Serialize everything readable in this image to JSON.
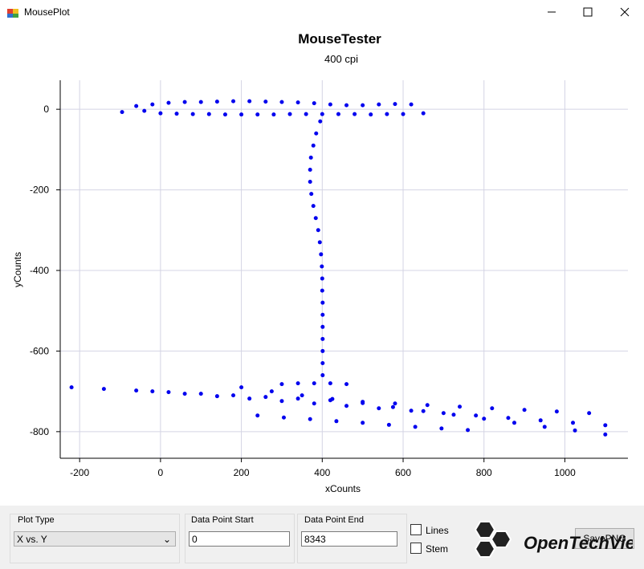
{
  "window": {
    "title": "MousePlot"
  },
  "chart_data": {
    "type": "scatter",
    "title": "MouseTester",
    "subtitle": "400 cpi",
    "x_label": "xCounts",
    "y_label": "yCounts",
    "color": "#0000ee",
    "grid": true,
    "xlim": [
      -248,
      1156
    ],
    "ylim": [
      -866,
      72
    ],
    "xticks": [
      -200,
      0,
      200,
      400,
      600,
      800,
      1000
    ],
    "yticks": [
      0,
      -200,
      -400,
      -600,
      -800
    ],
    "x": [
      -60,
      -20,
      20,
      60,
      100,
      140,
      180,
      220,
      260,
      300,
      340,
      380,
      420,
      460,
      500,
      540,
      580,
      620,
      -95,
      -40,
      0,
      40,
      80,
      120,
      160,
      200,
      240,
      280,
      320,
      360,
      400,
      440,
      480,
      520,
      560,
      600,
      650,
      395,
      385,
      378,
      372,
      370,
      370,
      373,
      378,
      384,
      390,
      394,
      397,
      399,
      400,
      400,
      401,
      401,
      401,
      401,
      401,
      401,
      401,
      -220,
      -140,
      -60,
      20,
      100,
      180,
      260,
      340,
      420,
      500,
      580,
      660,
      740,
      820,
      900,
      980,
      1060,
      -20,
      60,
      140,
      220,
      300,
      380,
      460,
      540,
      620,
      700,
      780,
      860,
      940,
      1020,
      1100,
      200,
      275,
      350,
      425,
      500,
      575,
      650,
      725,
      800,
      875,
      950,
      1025,
      1100,
      240,
      305,
      370,
      435,
      500,
      565,
      630,
      695,
      760,
      300,
      340,
      380,
      420,
      460
    ],
    "y": [
      8,
      12,
      16,
      18,
      18,
      19,
      20,
      20,
      19,
      18,
      17,
      15,
      12,
      10,
      10,
      12,
      13,
      12,
      -7,
      -4,
      -10,
      -11,
      -12,
      -12,
      -13,
      -13,
      -13,
      -13,
      -12,
      -12,
      -12,
      -12,
      -12,
      -13,
      -12,
      -12,
      -10,
      -30,
      -60,
      -90,
      -120,
      -150,
      -180,
      -210,
      -240,
      -270,
      -300,
      -330,
      -360,
      -390,
      -420,
      -450,
      -480,
      -510,
      -540,
      -570,
      -600,
      -630,
      -660,
      -690,
      -694,
      -698,
      -702,
      -706,
      -710,
      -714,
      -718,
      -722,
      -726,
      -730,
      -734,
      -738,
      -742,
      -746,
      -750,
      -754,
      -700,
      -706,
      -712,
      -718,
      -724,
      -730,
      -736,
      -742,
      -748,
      -754,
      -760,
      -766,
      -772,
      -778,
      -784,
      -690,
      -700,
      -710,
      -719,
      -729,
      -739,
      -749,
      -758,
      -768,
      -778,
      -788,
      -797,
      -807,
      -760,
      -765,
      -769,
      -774,
      -778,
      -783,
      -788,
      -792,
      -796,
      -682,
      -680,
      -680,
      -680,
      -682
    ]
  },
  "controls": {
    "plot_type_label": "Plot Type",
    "plot_type_value": "X vs. Y",
    "start_label": "Data Point Start",
    "start_value": "0",
    "end_label": "Data Point End",
    "end_value": "8343",
    "lines_label": "Lines",
    "stem_label": "Stem",
    "logo": "OpenTechView",
    "save_button": "SavePNG"
  }
}
